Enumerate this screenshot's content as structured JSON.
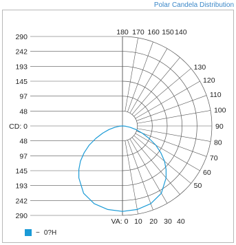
{
  "title": "Polar Candela Distribution",
  "colors": {
    "series": "#1a9ad6",
    "grid": "#555555"
  },
  "chart_data": {
    "type": "polar",
    "title": "Polar Candela Distribution",
    "cd_label": "CD",
    "cd_axis_labels": [
      "290",
      "242",
      "193",
      "145",
      "97",
      "48",
      "CD: 0",
      "48",
      "97",
      "145",
      "193",
      "242",
      "290"
    ],
    "cd_ticks": [
      290,
      242,
      193,
      145,
      97,
      48,
      0,
      48,
      97,
      145,
      193,
      242,
      290
    ],
    "va_label": "VA",
    "va_bottom_labels": [
      "VA: 0",
      "10",
      "20",
      "30",
      "40"
    ],
    "va_right_labels": [
      "50",
      "60",
      "70",
      "80",
      "90",
      "100",
      "110",
      "120",
      "130"
    ],
    "va_top_labels": [
      "180",
      "170",
      "160",
      "150",
      "140"
    ],
    "cd_max": 290,
    "series": [
      {
        "name": "0?H",
        "angles_deg": [
          0,
          10,
          20,
          30,
          40,
          45,
          50,
          55,
          60,
          65,
          70,
          75,
          80,
          85,
          90,
          100,
          180
        ],
        "candela": [
          277,
          275,
          268,
          252,
          220,
          200,
          178,
          152,
          125,
          95,
          68,
          45,
          25,
          10,
          0,
          0,
          0
        ]
      }
    ]
  },
  "legend": {
    "items": [
      {
        "label": "0?H",
        "separator": "−"
      }
    ]
  }
}
